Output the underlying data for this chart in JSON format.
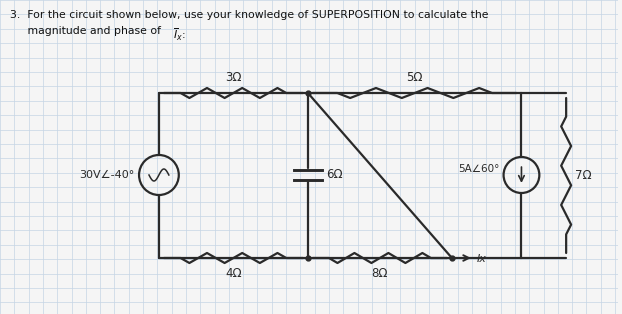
{
  "bg_color": "#f5f5f5",
  "grid_color": "#c5d5e5",
  "cc": "#2a2a2a",
  "lc": "#1a1a1a",
  "title1": "3.  For the circuit shown below, use your knowledge of SUPERPOSITION to calculate the",
  "title2": "     magnitude and phase of Īx:",
  "src_label": "30V∠-40°",
  "r1": "3Ω",
  "r2": "5Ω",
  "r3": "6Ω",
  "r4": "4Ω",
  "r5": "8Ω",
  "r6": "7Ω",
  "cs": "5A∠60°",
  "ix": "Ix",
  "figw": 6.22,
  "figh": 3.14,
  "dpi": 100,
  "xlim": [
    0,
    622
  ],
  "ylim": [
    0,
    314
  ],
  "grid_step": 14.4,
  "circuit_lw": 1.6,
  "resistor_amp": 5,
  "resistor_teeth": 6
}
